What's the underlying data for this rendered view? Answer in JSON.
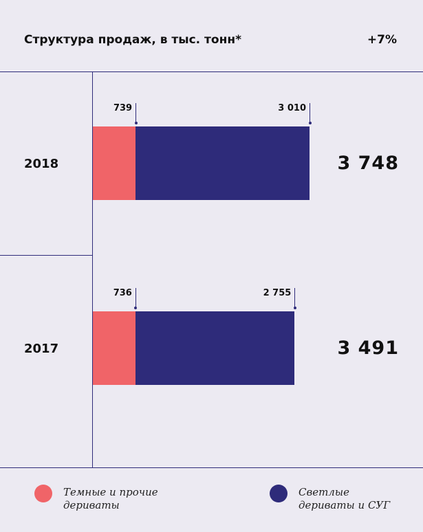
{
  "chart_data": {
    "type": "stacked-bar",
    "title": "Структура продаж, в тыс. тонн*",
    "annotation": "+7%",
    "categories": [
      "2018",
      "2017"
    ],
    "series": [
      {
        "name": "Темные и прочие дериваты",
        "color": "#f06468",
        "values": [
          739,
          736
        ]
      },
      {
        "name": "Светлые дериваты и СУГ",
        "color": "#2e2b7a",
        "values": [
          3010,
          2755
        ],
        "value_labels": [
          "3 010",
          "2 755"
        ]
      }
    ],
    "totals": [
      3748,
      3491
    ],
    "total_labels": [
      "3 748",
      "3 491"
    ]
  }
}
